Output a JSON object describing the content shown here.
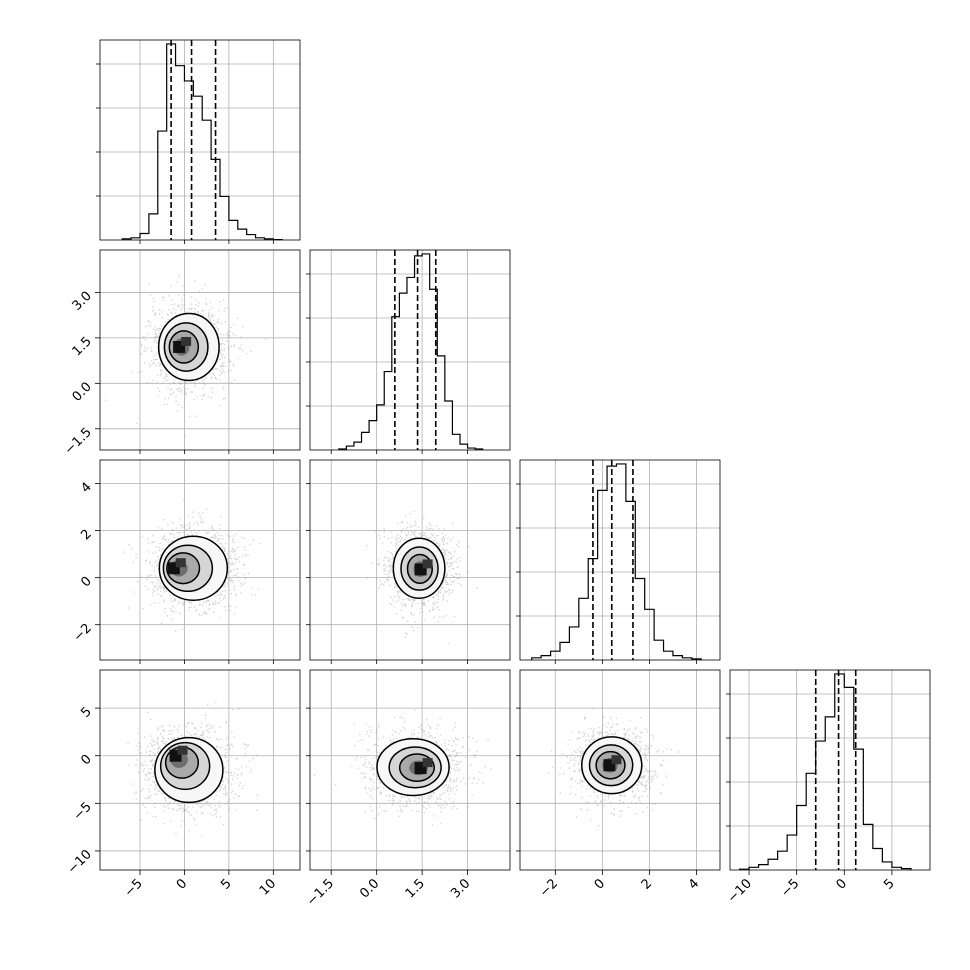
{
  "chart_data": {
    "type": "corner",
    "grid": true,
    "parameters": [
      {
        "range": [
          -9.5,
          13.0
        ],
        "ticks": [
          -5,
          0,
          5,
          10
        ],
        "tick_labels": [
          "−5",
          "0",
          "5",
          "10"
        ],
        "quantiles": [
          -1.5,
          0.8,
          3.5
        ],
        "hist": {
          "edges": [
            -7,
            -6,
            -5,
            -4,
            -3,
            -2,
            -1,
            0,
            1,
            2,
            3,
            4,
            5,
            6,
            7,
            8,
            9,
            10,
            11
          ],
          "counts": [
            0.5,
            1,
            3,
            12,
            50,
            90,
            80,
            73,
            66,
            55,
            37,
            20,
            9,
            5,
            2.5,
            1,
            0.5,
            0.2
          ]
        }
      },
      {
        "range": [
          -2.2,
          4.4
        ],
        "ticks": [
          -1.5,
          0.0,
          1.5,
          3.0
        ],
        "tick_labels": [
          "−1.5",
          "0.0",
          "1.5",
          "3.0"
        ],
        "quantiles": [
          0.6,
          1.35,
          1.95
        ],
        "hist": {
          "edges": [
            -1.25,
            -1.0,
            -0.75,
            -0.5,
            -0.25,
            0.0,
            0.25,
            0.5,
            0.75,
            1.0,
            1.25,
            1.5,
            1.75,
            2.0,
            2.25,
            2.5,
            2.75,
            3.0,
            3.25,
            3.5
          ],
          "counts": [
            0.5,
            2,
            4,
            9,
            15,
            23,
            40,
            68,
            80,
            88,
            99,
            100,
            82,
            48,
            25,
            8,
            3,
            1,
            0.5
          ]
        }
      },
      {
        "range": [
          -3.5,
          5.0
        ],
        "ticks": [
          -2,
          0,
          2,
          4
        ],
        "tick_labels": [
          "−2",
          "0",
          "2",
          "4"
        ],
        "quantiles": [
          -0.4,
          0.4,
          1.3
        ],
        "hist": {
          "edges": [
            -3.0,
            -2.6,
            -2.2,
            -1.8,
            -1.4,
            -1.0,
            -0.6,
            -0.2,
            0.2,
            0.6,
            1.0,
            1.4,
            1.8,
            2.2,
            2.6,
            3.0,
            3.4,
            3.8,
            4.2
          ],
          "counts": [
            1,
            2,
            4,
            8,
            15,
            28,
            46,
            77,
            88,
            89,
            72,
            37,
            23,
            9,
            4,
            2,
            1,
            0.5
          ]
        }
      },
      {
        "range": [
          -12.0,
          9.0
        ],
        "ticks": [
          -10,
          -5,
          0,
          5
        ],
        "tick_labels": [
          "−10",
          "−5",
          "0",
          "5"
        ],
        "quantiles": [
          -3.0,
          -0.6,
          1.2
        ],
        "hist": {
          "edges": [
            -11,
            -10,
            -9,
            -8,
            -7,
            -6,
            -5,
            -4,
            -3,
            -2,
            -1,
            0,
            1,
            2,
            3,
            4,
            5,
            6,
            7
          ],
          "counts": [
            0.3,
            1,
            2,
            4,
            7,
            13,
            24,
            36,
            48,
            57,
            73,
            68,
            45,
            17,
            8,
            3,
            1,
            0.5
          ]
        }
      }
    ],
    "pair_shapes": [
      {
        "row": 1,
        "col": 0,
        "center": [
          0.5,
          1.2
        ],
        "peak": [
          -0.6,
          1.2
        ],
        "extent": [
          4.0,
          1.3
        ]
      },
      {
        "row": 2,
        "col": 0,
        "center": [
          1.0,
          0.4
        ],
        "peak": [
          -1.2,
          0.4
        ],
        "extent": [
          4.5,
          1.6
        ]
      },
      {
        "row": 2,
        "col": 1,
        "center": [
          1.4,
          0.4
        ],
        "peak": [
          1.45,
          0.35
        ],
        "extent": [
          1.0,
          1.5
        ]
      },
      {
        "row": 3,
        "col": 0,
        "center": [
          0.5,
          -1.5
        ],
        "peak": [
          -1.0,
          0.0
        ],
        "extent": [
          4.5,
          4.0
        ]
      },
      {
        "row": 3,
        "col": 1,
        "center": [
          1.2,
          -1.2
        ],
        "peak": [
          1.45,
          -1.3
        ],
        "extent": [
          1.4,
          3.5
        ]
      },
      {
        "row": 3,
        "col": 2,
        "center": [
          0.4,
          -1.0
        ],
        "peak": [
          0.3,
          -1.0
        ],
        "extent": [
          1.5,
          3.5
        ]
      }
    ]
  }
}
